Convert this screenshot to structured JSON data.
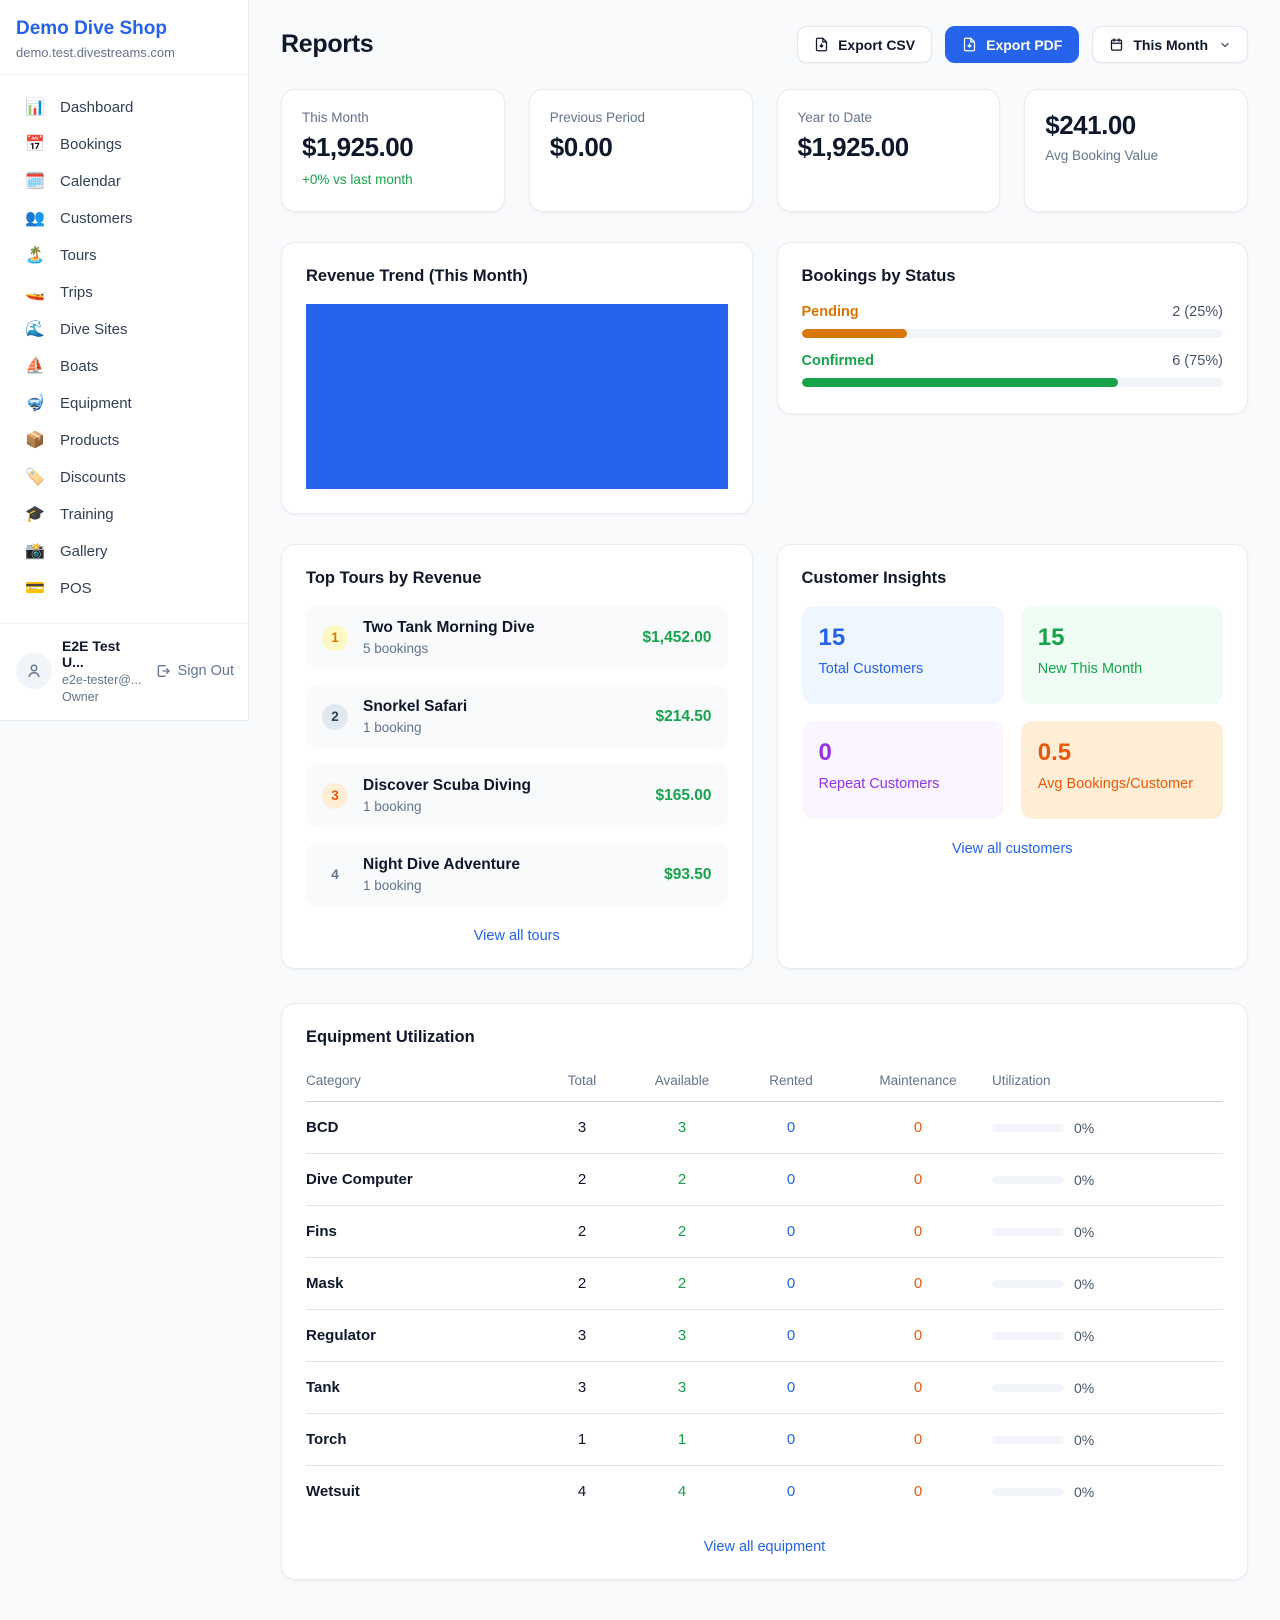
{
  "brand": {
    "name": "Demo Dive Shop",
    "domain": "demo.test.divestreams.com"
  },
  "sidebar": {
    "items": [
      {
        "label": "Dashboard",
        "icon": "bar-chart",
        "glyph": "📊"
      },
      {
        "label": "Bookings",
        "icon": "calendar-date",
        "glyph": "📅"
      },
      {
        "label": "Calendar",
        "icon": "calendar",
        "glyph": "🗓️"
      },
      {
        "label": "Customers",
        "icon": "people",
        "glyph": "👥"
      },
      {
        "label": "Tours",
        "icon": "island",
        "glyph": "🏝️"
      },
      {
        "label": "Trips",
        "icon": "speedboat",
        "glyph": "🚤"
      },
      {
        "label": "Dive Sites",
        "icon": "wave",
        "glyph": "🌊"
      },
      {
        "label": "Boats",
        "icon": "sailboat",
        "glyph": "⛵"
      },
      {
        "label": "Equipment",
        "icon": "diving-mask",
        "glyph": "🤿"
      },
      {
        "label": "Products",
        "icon": "package",
        "glyph": "📦"
      },
      {
        "label": "Discounts",
        "icon": "tag",
        "glyph": "🏷️"
      },
      {
        "label": "Training",
        "icon": "graduation-cap",
        "glyph": "🎓"
      },
      {
        "label": "Gallery",
        "icon": "camera",
        "glyph": "📸"
      },
      {
        "label": "POS",
        "icon": "credit-card",
        "glyph": "💳"
      }
    ],
    "user": {
      "name": "E2E Test U...",
      "email": "e2e-tester@...",
      "role": "Owner",
      "sign_out_label": "Sign Out"
    }
  },
  "header": {
    "title": "Reports",
    "export_csv_label": "Export CSV",
    "export_pdf_label": "Export PDF",
    "period_label": "This Month"
  },
  "stats": [
    {
      "label": "This Month",
      "value": "$1,925.00",
      "delta": "+0% vs last month"
    },
    {
      "label": "Previous Period",
      "value": "$0.00"
    },
    {
      "label": "Year to Date",
      "value": "$1,925.00"
    },
    {
      "label": "Avg Booking Value",
      "value": "$241.00",
      "value_first": true
    }
  ],
  "revenue_trend": {
    "title": "Revenue Trend (This Month)",
    "bar_color": "#2563eb"
  },
  "bookings_by_status": {
    "title": "Bookings by Status",
    "rows": [
      {
        "label": "Pending",
        "value": "2 (25%)",
        "pct": 25,
        "color": "#d97706"
      },
      {
        "label": "Confirmed",
        "value": "6 (75%)",
        "pct": 75,
        "color": "#16a34a"
      }
    ]
  },
  "top_tours": {
    "title": "Top Tours by Revenue",
    "view_all_label": "View all tours",
    "items": [
      {
        "rank": "1",
        "badge_bg": "#fef9c3",
        "badge_color": "#d97706",
        "name": "Two Tank Morning Dive",
        "bookings": "5 bookings",
        "amount": "$1,452.00"
      },
      {
        "rank": "2",
        "badge_bg": "#e2e8f0",
        "badge_color": "#334155",
        "name": "Snorkel Safari",
        "bookings": "1 booking",
        "amount": "$214.50"
      },
      {
        "rank": "3",
        "badge_bg": "#ffedd5",
        "badge_color": "#ea580c",
        "name": "Discover Scuba Diving",
        "bookings": "1 booking",
        "amount": "$165.00"
      },
      {
        "rank": "4",
        "badge_bg": "transparent",
        "badge_color": "#64748b",
        "name": "Night Dive Adventure",
        "bookings": "1 booking",
        "amount": "$93.50"
      }
    ]
  },
  "customer_insights": {
    "title": "Customer Insights",
    "view_all_label": "View all customers",
    "tiles": [
      {
        "value": "15",
        "label": "Total Customers",
        "bg": "#eff6ff",
        "color": "#2563eb"
      },
      {
        "value": "15",
        "label": "New This Month",
        "bg": "#f0fdf4",
        "color": "#16a34a"
      },
      {
        "value": "0",
        "label": "Repeat Customers",
        "bg": "#faf5ff",
        "color": "#9333ea"
      },
      {
        "value": "0.5",
        "label": "Avg Bookings/Customer",
        "bg": "#ffeed6",
        "color": "#ea580c"
      }
    ]
  },
  "equipment": {
    "title": "Equipment Utilization",
    "view_all_label": "View all equipment",
    "columns": [
      "Category",
      "Total",
      "Available",
      "Rented",
      "Maintenance",
      "Utilization"
    ],
    "rows": [
      {
        "category": "BCD",
        "total": "3",
        "available": "3",
        "rented": "0",
        "maintenance": "0",
        "utilization": "0%",
        "pct": 0
      },
      {
        "category": "Dive Computer",
        "total": "2",
        "available": "2",
        "rented": "0",
        "maintenance": "0",
        "utilization": "0%",
        "pct": 0
      },
      {
        "category": "Fins",
        "total": "2",
        "available": "2",
        "rented": "0",
        "maintenance": "0",
        "utilization": "0%",
        "pct": 0
      },
      {
        "category": "Mask",
        "total": "2",
        "available": "2",
        "rented": "0",
        "maintenance": "0",
        "utilization": "0%",
        "pct": 0
      },
      {
        "category": "Regulator",
        "total": "3",
        "available": "3",
        "rented": "0",
        "maintenance": "0",
        "utilization": "0%",
        "pct": 0
      },
      {
        "category": "Tank",
        "total": "3",
        "available": "3",
        "rented": "0",
        "maintenance": "0",
        "utilization": "0%",
        "pct": 0
      },
      {
        "category": "Torch",
        "total": "1",
        "available": "1",
        "rented": "0",
        "maintenance": "0",
        "utilization": "0%",
        "pct": 0
      },
      {
        "category": "Wetsuit",
        "total": "4",
        "available": "4",
        "rented": "0",
        "maintenance": "0",
        "utilization": "0%",
        "pct": 0
      }
    ]
  },
  "chart_data": [
    {
      "type": "bar",
      "title": "Revenue Trend (This Month)",
      "note": "single solid bar filling the entire plot area; no axes or labels visible",
      "color": "#2563eb"
    },
    {
      "type": "bar",
      "title": "Bookings by Status",
      "categories": [
        "Pending",
        "Confirmed"
      ],
      "values": [
        2,
        6
      ],
      "percents": [
        25,
        75
      ],
      "colors": [
        "#d97706",
        "#16a34a"
      ],
      "xlim": [
        0,
        100
      ]
    }
  ]
}
